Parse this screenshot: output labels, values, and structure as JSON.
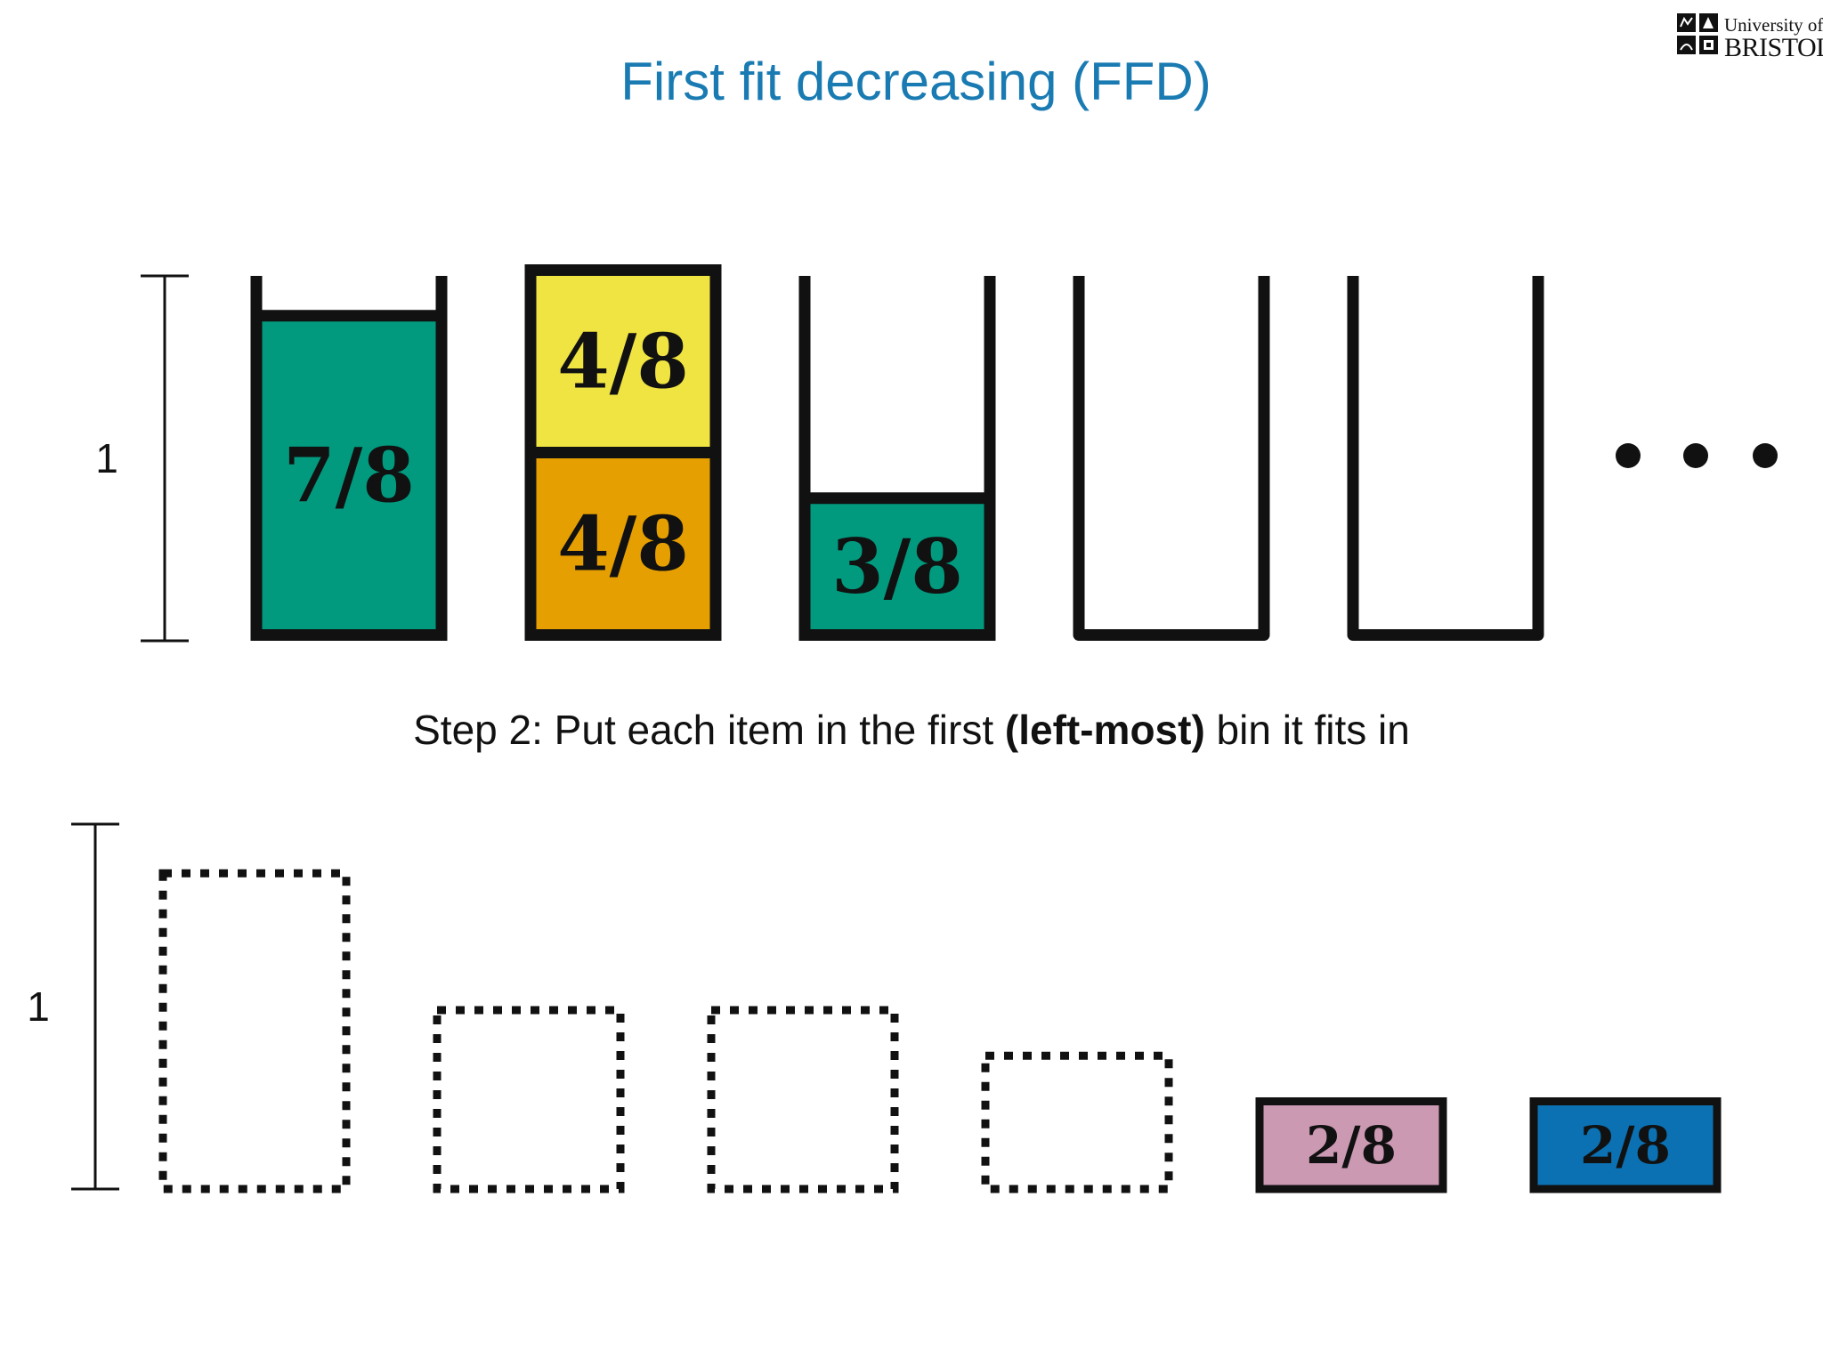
{
  "title": "First fit decreasing (FFD)",
  "logo": {
    "line1": "University of",
    "line2": "BRISTOL"
  },
  "colors": {
    "title": "#1a7bb3",
    "teal": "#019a7e",
    "yellow": "#f0e442",
    "orange": "#e69f00",
    "pink": "#cc99b3",
    "blue": "#0b71b2"
  },
  "bins": {
    "scale_label": "1",
    "capacity": 1,
    "list": [
      {
        "items": [
          {
            "label": "7/8",
            "size": 0.875,
            "color": "teal"
          }
        ]
      },
      {
        "items": [
          {
            "label": "4/8",
            "size": 0.5,
            "color": "orange"
          },
          {
            "label": "4/8",
            "size": 0.5,
            "color": "yellow"
          }
        ]
      },
      {
        "items": [
          {
            "label": "3/8",
            "size": 0.375,
            "color": "teal"
          }
        ]
      },
      {
        "items": []
      },
      {
        "items": []
      }
    ],
    "more_indicator": "..."
  },
  "step": {
    "prefix": "Step 2: Put each item in the first ",
    "bold": "(left-most)",
    "suffix": " bin it fits in"
  },
  "items": {
    "scale_label": "1",
    "list": [
      {
        "size": 0.875,
        "placed": true,
        "label": ""
      },
      {
        "size": 0.5,
        "placed": true,
        "label": ""
      },
      {
        "size": 0.5,
        "placed": true,
        "label": ""
      },
      {
        "size": 0.375,
        "placed": true,
        "label": ""
      },
      {
        "size": 0.25,
        "placed": false,
        "label": "2/8",
        "color": "pink"
      },
      {
        "size": 0.25,
        "placed": false,
        "label": "2/8",
        "color": "blue"
      }
    ]
  }
}
